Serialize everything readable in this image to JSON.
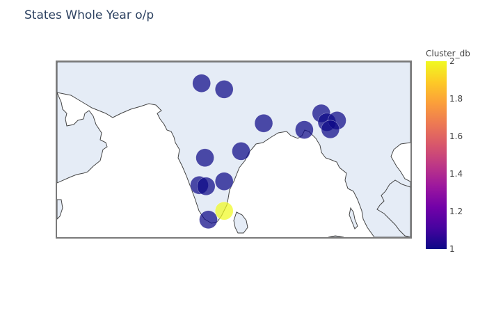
{
  "title": "States Whole Year o/p",
  "colors": {
    "land": "#e5ecf6",
    "coast": "#444444",
    "frame": "#7a7a7a",
    "scale": [
      "#0d0887",
      "#46039f",
      "#7201a8",
      "#9c179e",
      "#bd3786",
      "#d8576b",
      "#ed7953",
      "#fb9f3a",
      "#fdca26",
      "#f0f921"
    ]
  },
  "colorbar": {
    "title": "Cluster_db",
    "min": 1,
    "max": 2,
    "ticks": [
      "1",
      "1.2",
      "1.4",
      "1.6",
      "1.8",
      "2"
    ]
  },
  "map": {
    "projection": "equirectangular",
    "lon_range": [
      67.5,
      98.8
    ],
    "lat_range": [
      5.5,
      37.5
    ]
  },
  "chart_data": {
    "type": "scatter",
    "title": "States Whole Year o/p",
    "color_axis_label": "Cluster_db",
    "series": [
      {
        "points": [
          {
            "lon": 80.3,
            "lat": 33.6,
            "cluster": 1
          },
          {
            "lon": 82.3,
            "lat": 32.5,
            "cluster": 1
          },
          {
            "lon": 85.8,
            "lat": 26.3,
            "cluster": 1
          },
          {
            "lon": 90.9,
            "lat": 28.1,
            "cluster": 1
          },
          {
            "lon": 89.4,
            "lat": 25.1,
            "cluster": 1
          },
          {
            "lon": 91.4,
            "lat": 26.5,
            "cluster": 1
          },
          {
            "lon": 92.3,
            "lat": 26.8,
            "cluster": 1
          },
          {
            "lon": 91.7,
            "lat": 25.2,
            "cluster": 1
          },
          {
            "lon": 83.8,
            "lat": 21.2,
            "cluster": 1
          },
          {
            "lon": 80.6,
            "lat": 20.0,
            "cluster": 1
          },
          {
            "lon": 80.1,
            "lat": 15.0,
            "cluster": 1
          },
          {
            "lon": 80.7,
            "lat": 14.8,
            "cluster": 1
          },
          {
            "lon": 82.3,
            "lat": 15.7,
            "cluster": 1
          },
          {
            "lon": 80.9,
            "lat": 8.7,
            "cluster": 1
          },
          {
            "lon": 82.3,
            "lat": 10.3,
            "cluster": 2
          }
        ]
      }
    ]
  }
}
